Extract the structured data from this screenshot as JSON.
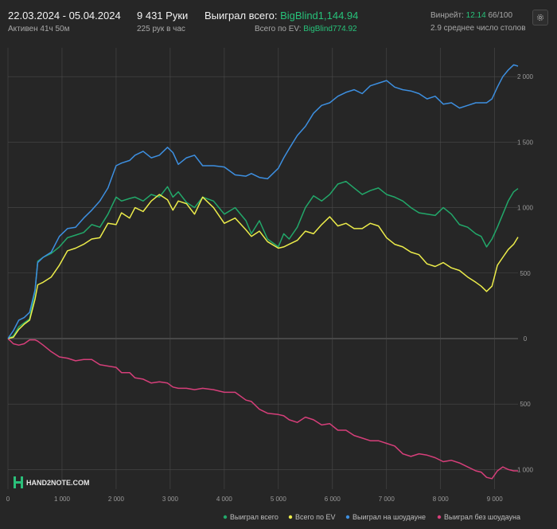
{
  "header": {
    "date_range": "22.03.2024 - 05.04.2024",
    "active_time": "Активен 41ч 50м",
    "hands": "9 431 Руки",
    "hands_rate": "225 рук в час",
    "won_total_label": "Выиграл всего:",
    "won_total_value": "BigBlind1,144.94",
    "ev_total_label": "Всего по EV:",
    "ev_total_value": "BigBlind774.92",
    "winrate_label": "Винрейт:",
    "winrate_value": "12.14",
    "winrate_fraction": "66/100",
    "avg_tables": "2.9 среднее число столов"
  },
  "logo": {
    "text": "HAND2NOTE.COM"
  },
  "colors": {
    "background": "#262626",
    "grid": "#4a4a4a",
    "won_total": "#22a86a",
    "ev": "#ecec4a",
    "showdown": "#3d8fe0",
    "non_showdown": "#d63f7a",
    "accent_green": "#27c27a"
  },
  "chart_data": {
    "type": "line",
    "title": "",
    "xlabel": "",
    "ylabel": "",
    "xlim": [
      0,
      9431
    ],
    "ylim": [
      -1150,
      2220
    ],
    "x_ticks": [
      0,
      1000,
      2000,
      3000,
      4000,
      5000,
      6000,
      7000,
      8000,
      9000
    ],
    "x_tick_labels": [
      "0",
      "1 000",
      "2 000",
      "3 000",
      "4 000",
      "5 000",
      "6 000",
      "7 000",
      "8 000",
      "9 000"
    ],
    "y_ticks": [
      2000,
      1500,
      1000,
      500,
      0,
      -500,
      -1000
    ],
    "y_tick_labels": [
      "2 000",
      "1 500",
      "1 000",
      "500",
      "0",
      "500",
      "1 000"
    ],
    "grid": true,
    "legend_position": "bottom-right",
    "series": [
      {
        "name": "Выиграл всего",
        "color": "#22a86a",
        "x": [
          0,
          100,
          200,
          300,
          400,
          500,
          550,
          650,
          800,
          950,
          1100,
          1250,
          1400,
          1550,
          1700,
          1850,
          2000,
          2100,
          2250,
          2350,
          2500,
          2650,
          2800,
          2950,
          3050,
          3150,
          3300,
          3450,
          3600,
          3800,
          4000,
          4200,
          4400,
          4500,
          4650,
          4800,
          5000,
          5100,
          5200,
          5350,
          5500,
          5650,
          5800,
          5950,
          6100,
          6250,
          6400,
          6550,
          6700,
          6850,
          7000,
          7150,
          7300,
          7450,
          7600,
          7750,
          7900,
          8050,
          8200,
          8350,
          8500,
          8650,
          8750,
          8850,
          8950,
          9050,
          9150,
          9250,
          9350,
          9431
        ],
        "values": [
          0,
          20,
          90,
          120,
          150,
          360,
          590,
          620,
          650,
          700,
          770,
          790,
          810,
          870,
          850,
          950,
          1080,
          1050,
          1070,
          1080,
          1050,
          1100,
          1080,
          1160,
          1080,
          1120,
          1040,
          1000,
          1080,
          1050,
          950,
          1000,
          900,
          800,
          900,
          760,
          700,
          800,
          760,
          850,
          1000,
          1090,
          1050,
          1100,
          1180,
          1200,
          1150,
          1100,
          1130,
          1150,
          1100,
          1080,
          1050,
          1000,
          960,
          950,
          940,
          1000,
          950,
          870,
          850,
          800,
          780,
          700,
          760,
          850,
          950,
          1050,
          1120,
          1144.94
        ]
      },
      {
        "name": "Всего по EV",
        "color": "#ecec4a",
        "x": [
          0,
          100,
          200,
          300,
          400,
          500,
          550,
          650,
          800,
          950,
          1100,
          1250,
          1400,
          1550,
          1700,
          1850,
          2000,
          2100,
          2250,
          2350,
          2500,
          2650,
          2800,
          2950,
          3050,
          3150,
          3300,
          3450,
          3600,
          3800,
          4000,
          4200,
          4400,
          4500,
          4650,
          4800,
          5000,
          5100,
          5200,
          5350,
          5500,
          5650,
          5800,
          5950,
          6100,
          6250,
          6400,
          6550,
          6700,
          6850,
          7000,
          7150,
          7300,
          7450,
          7600,
          7750,
          7900,
          8050,
          8200,
          8350,
          8500,
          8650,
          8750,
          8850,
          8950,
          9050,
          9150,
          9250,
          9350,
          9431
        ],
        "values": [
          0,
          10,
          70,
          110,
          140,
          300,
          410,
          430,
          470,
          560,
          670,
          690,
          720,
          760,
          770,
          880,
          870,
          960,
          920,
          1000,
          970,
          1050,
          1100,
          1060,
          980,
          1050,
          1030,
          950,
          1080,
          1000,
          880,
          920,
          830,
          780,
          820,
          740,
          690,
          700,
          720,
          750,
          820,
          800,
          870,
          930,
          860,
          880,
          840,
          840,
          880,
          860,
          770,
          720,
          700,
          660,
          640,
          570,
          550,
          580,
          540,
          520,
          470,
          430,
          400,
          360,
          400,
          560,
          620,
          680,
          720,
          774.92
        ]
      },
      {
        "name": "Выиграл на шоудауне",
        "color": "#3d8fe0",
        "x": [
          0,
          100,
          200,
          300,
          400,
          500,
          550,
          650,
          800,
          950,
          1100,
          1250,
          1400,
          1550,
          1700,
          1850,
          2000,
          2100,
          2250,
          2350,
          2500,
          2650,
          2800,
          2950,
          3050,
          3150,
          3300,
          3450,
          3600,
          3800,
          4000,
          4200,
          4400,
          4500,
          4650,
          4800,
          5000,
          5100,
          5200,
          5350,
          5500,
          5650,
          5800,
          5950,
          6100,
          6250,
          6400,
          6550,
          6700,
          6850,
          7000,
          7150,
          7300,
          7450,
          7600,
          7750,
          7900,
          8050,
          8200,
          8350,
          8500,
          8650,
          8750,
          8850,
          8950,
          9050,
          9150,
          9250,
          9350,
          9431
        ],
        "values": [
          0,
          60,
          140,
          160,
          200,
          370,
          580,
          620,
          660,
          780,
          840,
          850,
          920,
          980,
          1050,
          1150,
          1320,
          1340,
          1360,
          1400,
          1430,
          1380,
          1400,
          1460,
          1420,
          1330,
          1380,
          1400,
          1320,
          1320,
          1310,
          1250,
          1240,
          1260,
          1230,
          1220,
          1300,
          1380,
          1450,
          1550,
          1620,
          1720,
          1780,
          1800,
          1850,
          1880,
          1900,
          1870,
          1930,
          1950,
          1970,
          1920,
          1900,
          1890,
          1870,
          1830,
          1850,
          1790,
          1800,
          1760,
          1780,
          1800,
          1800,
          1800,
          1830,
          1920,
          2000,
          2050,
          2090,
          2080
        ]
      },
      {
        "name": "Выиграл без шоудауна",
        "color": "#d63f7a",
        "x": [
          0,
          100,
          200,
          300,
          400,
          500,
          550,
          650,
          800,
          950,
          1100,
          1250,
          1400,
          1550,
          1700,
          1850,
          2000,
          2100,
          2250,
          2350,
          2500,
          2650,
          2800,
          2950,
          3050,
          3150,
          3300,
          3450,
          3600,
          3800,
          4000,
          4200,
          4400,
          4500,
          4650,
          4800,
          5000,
          5100,
          5200,
          5350,
          5500,
          5650,
          5800,
          5950,
          6100,
          6250,
          6400,
          6550,
          6700,
          6850,
          7000,
          7150,
          7300,
          7450,
          7600,
          7750,
          7900,
          8050,
          8200,
          8350,
          8500,
          8650,
          8750,
          8850,
          8950,
          9050,
          9150,
          9250,
          9350,
          9431
        ],
        "values": [
          0,
          -40,
          -50,
          -40,
          -10,
          -10,
          -20,
          -50,
          -100,
          -140,
          -150,
          -170,
          -160,
          -160,
          -200,
          -210,
          -220,
          -260,
          -260,
          -300,
          -310,
          -340,
          -330,
          -340,
          -370,
          -380,
          -380,
          -390,
          -380,
          -390,
          -410,
          -410,
          -470,
          -480,
          -540,
          -570,
          -580,
          -590,
          -620,
          -640,
          -600,
          -620,
          -660,
          -650,
          -700,
          -700,
          -740,
          -760,
          -780,
          -780,
          -800,
          -820,
          -880,
          -900,
          -880,
          -890,
          -910,
          -940,
          -930,
          -950,
          -980,
          -1010,
          -1020,
          -1060,
          -1070,
          -1010,
          -980,
          -1000,
          -1010,
          -1010
        ]
      }
    ]
  }
}
